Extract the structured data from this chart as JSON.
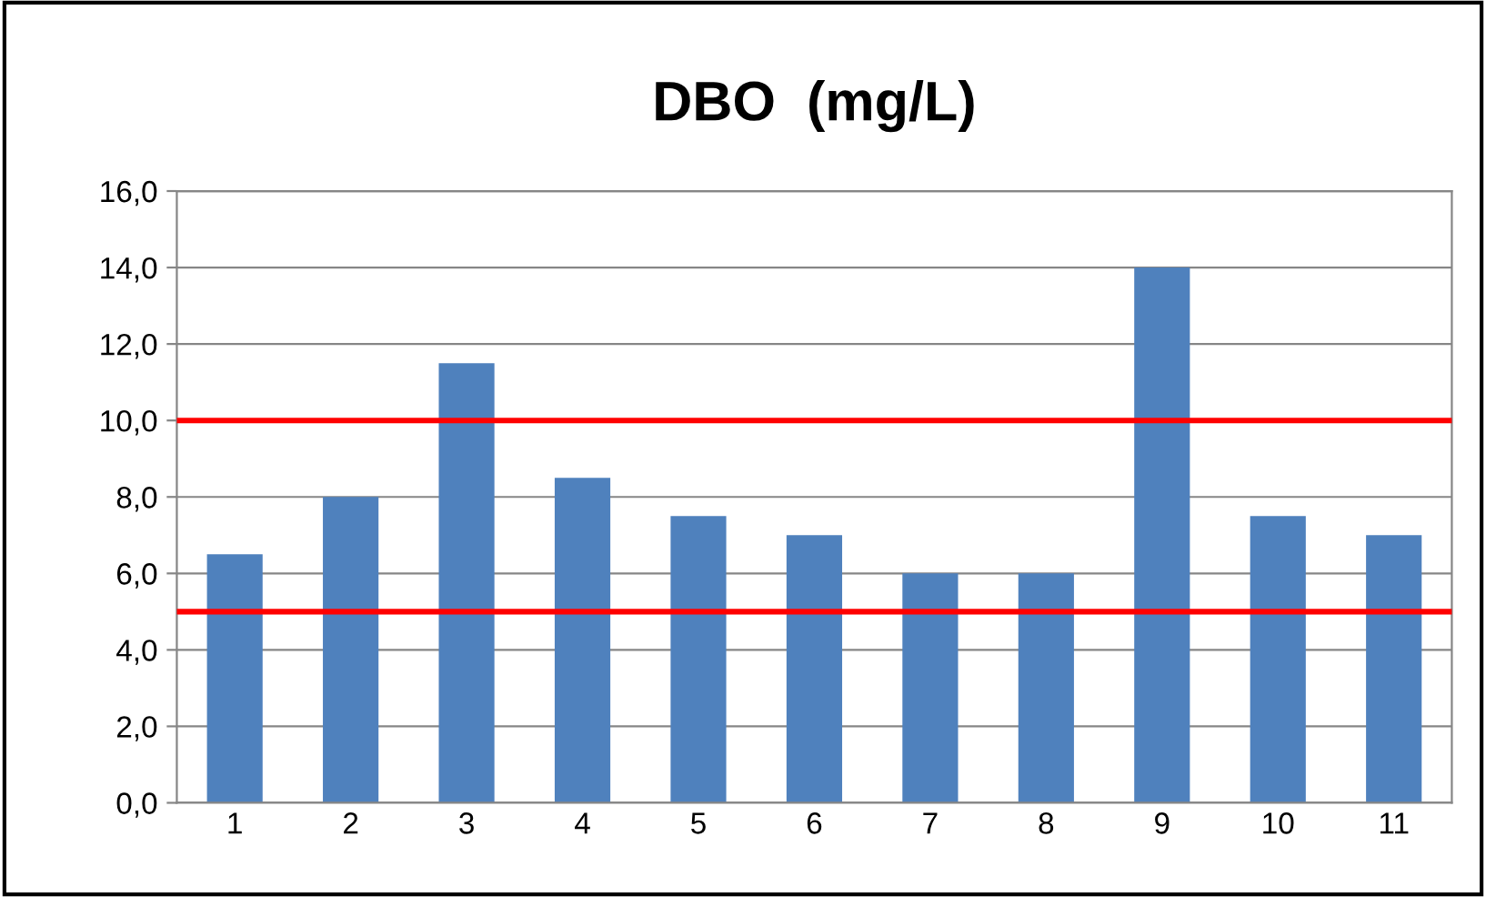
{
  "chart_data": {
    "type": "bar",
    "title": "DBO  (mg/L)",
    "categories": [
      "1",
      "2",
      "3",
      "4",
      "5",
      "6",
      "7",
      "8",
      "9",
      "10",
      "11"
    ],
    "values": [
      6.5,
      8,
      11.5,
      8.5,
      7.5,
      7,
      6,
      6,
      14,
      7.5,
      7
    ],
    "color": "#4f81bd",
    "ylim": [
      0,
      16
    ],
    "yticks": [
      {
        "value": 0,
        "label": "0,0"
      },
      {
        "value": 2,
        "label": "2,0"
      },
      {
        "value": 4,
        "label": "4,0"
      },
      {
        "value": 6,
        "label": "6,0"
      },
      {
        "value": 8,
        "label": "8,0"
      },
      {
        "value": 10,
        "label": "10,0"
      },
      {
        "value": 12,
        "label": "12,0"
      },
      {
        "value": 14,
        "label": "14,0"
      },
      {
        "value": 16,
        "label": "16,0"
      }
    ],
    "ref_lines": [
      {
        "axis": "y",
        "value": 10,
        "color": "#ff0000"
      },
      {
        "axis": "y",
        "value": 5,
        "color": "#ff0000"
      }
    ],
    "grid": "y",
    "legend": false
  }
}
